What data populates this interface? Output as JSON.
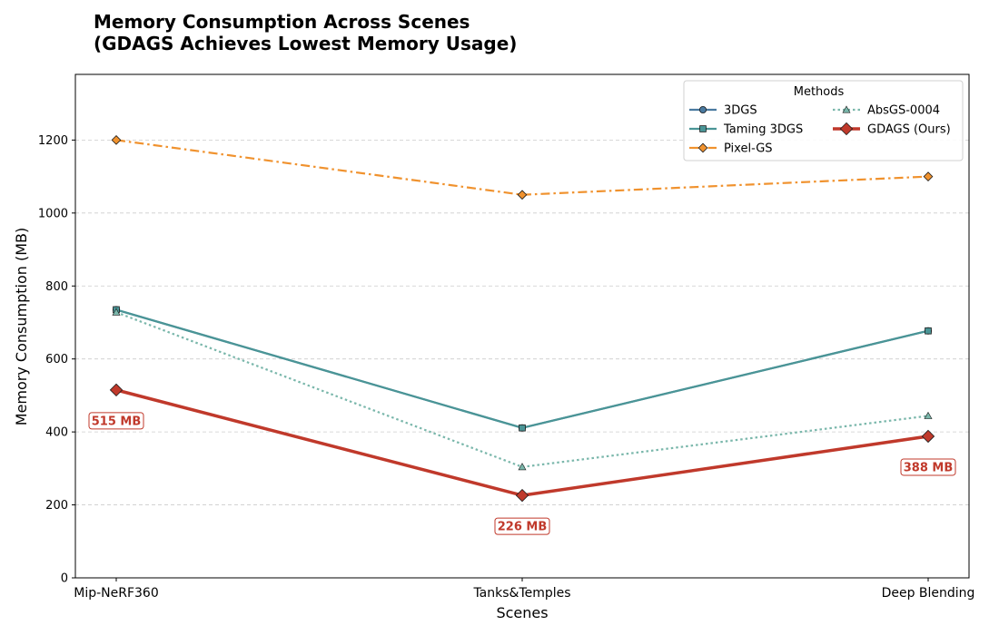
{
  "chart_data": {
    "type": "line",
    "title": "Memory Consumption Across Scenes",
    "subtitle": "(GDAGS Achieves Lowest Memory Usage)",
    "xlabel": "Scenes",
    "ylabel": "Memory Consumption (MB)",
    "categories": [
      "Mip-NeRF360",
      "Tanks&Temples",
      "Deep Blending"
    ],
    "ylim": [
      0,
      1380
    ],
    "yticks": [
      0,
      200,
      400,
      600,
      800,
      1000,
      1200
    ],
    "grid": "y-dashed",
    "legend": {
      "title": "Methods",
      "placement": "top-right",
      "columns": 2
    },
    "series": [
      {
        "name": "3DGS",
        "values": [
          735,
          411,
          677
        ],
        "color": "#4a7aa0",
        "marker": "circle",
        "linestyle": "solid"
      },
      {
        "name": "Taming 3DGS",
        "values": [
          735,
          411,
          677
        ],
        "color": "#4a9596",
        "marker": "square",
        "linestyle": "solid"
      },
      {
        "name": "Pixel-GS",
        "values": [
          1200,
          1050,
          1100
        ],
        "color": "#f0922e",
        "marker": "diamond",
        "linestyle": "dashdot"
      },
      {
        "name": "AbsGS-0004",
        "values": [
          728,
          304,
          444
        ],
        "color": "#7ab7ab",
        "marker": "triangle",
        "linestyle": "dotted"
      },
      {
        "name": "GDAGS (Ours)",
        "values": [
          515,
          226,
          388
        ],
        "color": "#c0392b",
        "marker": "diamond",
        "linestyle": "solid-thick"
      }
    ],
    "annotations": [
      {
        "label": "515 MB",
        "category": "Mip-NeRF360",
        "value": 515,
        "color": "#c0392b"
      },
      {
        "label": "226 MB",
        "category": "Tanks&Temples",
        "value": 226,
        "color": "#c0392b"
      },
      {
        "label": "388 MB",
        "category": "Deep Blending",
        "value": 388,
        "color": "#c0392b"
      }
    ]
  }
}
